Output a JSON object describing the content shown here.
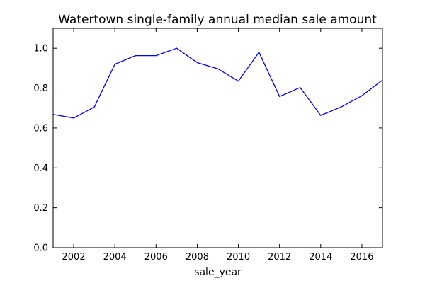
{
  "chart_data": {
    "type": "line",
    "title": "Watertown single-family annual median sale amount",
    "xlabel": "sale_year",
    "ylabel": "",
    "xlim": [
      2001,
      2017
    ],
    "ylim": [
      0.0,
      1.1
    ],
    "x_ticks": [
      2002,
      2004,
      2006,
      2008,
      2010,
      2012,
      2014,
      2016
    ],
    "y_ticks": [
      0.0,
      0.2,
      0.4,
      0.6,
      0.8,
      1.0
    ],
    "x_tick_labels": [
      "2002",
      "2004",
      "2006",
      "2008",
      "2010",
      "2012",
      "2014",
      "2016"
    ],
    "y_tick_labels": [
      "0.0",
      "0.2",
      "0.4",
      "0.6",
      "0.8",
      "1.0"
    ],
    "grid": false,
    "legend": "none",
    "series": [
      {
        "color": "#0000ff",
        "x": [
          2001,
          2002,
          2003,
          2004,
          2005,
          2006,
          2007,
          2008,
          2009,
          2010,
          2011,
          2012,
          2013,
          2014,
          2015,
          2016,
          2017
        ],
        "y": [
          0.668,
          0.65,
          0.705,
          0.92,
          0.963,
          0.963,
          1.0,
          0.928,
          0.897,
          0.835,
          0.98,
          0.758,
          0.803,
          0.663,
          0.706,
          0.762,
          0.84
        ]
      }
    ]
  }
}
